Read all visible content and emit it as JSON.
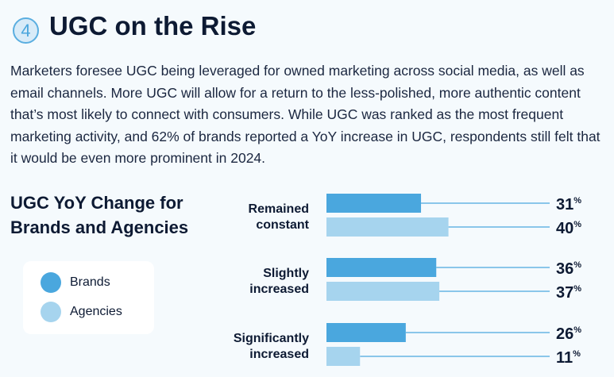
{
  "header": {
    "section_number": "4",
    "title": "UGC on the Rise"
  },
  "intro": "Marketers foresee UGC being leveraged for owned marketing across social media, as well as email channels. More UGC will allow for a return to the less-polished, more authentic content that’s most likely to connect with consumers. While UGC was ranked as the most frequent marketing activity, and 62% of brands reported a YoY increase in UGC, respondents still felt that it would be even more prominent in 2024.",
  "chart_data": {
    "type": "bar",
    "orientation": "horizontal",
    "title": "UGC YoY Change for Brands and Agencies",
    "categories": [
      [
        "Remained",
        "constant"
      ],
      [
        "Slightly",
        "increased"
      ],
      [
        "Significantly",
        "increased"
      ]
    ],
    "series": [
      {
        "name": "Brands",
        "color": "#4aa7de",
        "values": [
          31,
          36,
          26
        ]
      },
      {
        "name": "Agencies",
        "color": "#a6d4ee",
        "values": [
          40,
          37,
          11
        ]
      }
    ],
    "unit": "%",
    "legend_position": "left"
  }
}
